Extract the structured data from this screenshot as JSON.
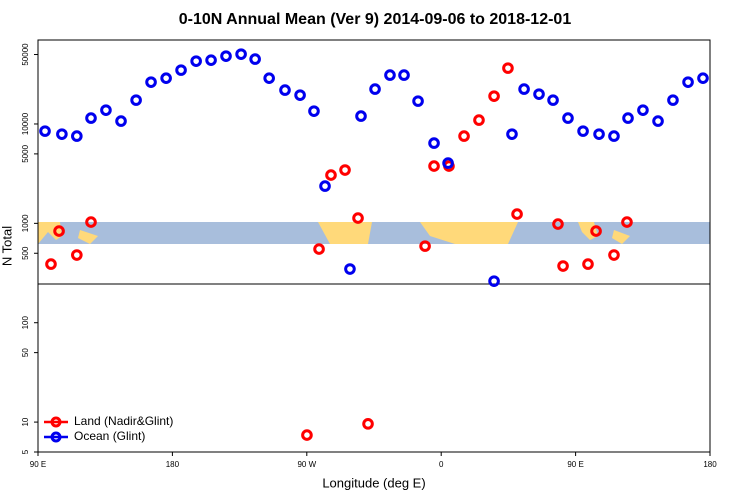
{
  "chart_data": {
    "type": "scatter",
    "title": "0-10N Annual Mean (Ver 9)   2014-09-06 to 2018-12-01",
    "xlabel": "Longitude (deg E)",
    "ylabel": "N Total",
    "xlim": [
      90,
      540
    ],
    "ylim": [
      5,
      70000
    ],
    "log_y": true,
    "legend": "bottom left",
    "xticks": [
      {
        "value": 90,
        "label": "90 E"
      },
      {
        "value": 180,
        "label": "180"
      },
      {
        "value": 270,
        "label": "90 W"
      },
      {
        "value": 360,
        "label": "0"
      },
      {
        "value": 450,
        "label": "90 E"
      },
      {
        "value": 540,
        "label": "180"
      }
    ],
    "yticks": [
      5,
      10,
      50,
      100,
      500,
      1000,
      5000,
      10000,
      50000
    ],
    "series": [
      {
        "name": "Land (Nadir&Glint)",
        "color": "#ff0000",
        "x": [
          98.7,
          104.1,
          116,
          125.5,
          270.1,
          278.2,
          286.2,
          295.6,
          304.3,
          311,
          349.2,
          355.2,
          365.2,
          375.3,
          385.3,
          395.4,
          404.7,
          410.8,
          438.2,
          441.6,
          458.3,
          463.7,
          475.7,
          484.4
        ],
        "values": [
          389,
          836,
          480,
          1030,
          7.4,
          551,
          3060,
          3440,
          1130,
          9.6,
          590,
          3770,
          3770,
          7550,
          10940,
          19060,
          36480,
          1240,
          984,
          372,
          389,
          836,
          480,
          1030
        ]
      },
      {
        "name": "Ocean (Glint)",
        "color": "#0000ee",
        "x": [
          94.7,
          106,
          116,
          125.5,
          135.5,
          145.6,
          155.7,
          165.7,
          175.8,
          185.8,
          195.9,
          205.9,
          215.9,
          226,
          235.4,
          244.8,
          255.4,
          265.5,
          274.8,
          282.2,
          298.9,
          306.3,
          315.7,
          325.7,
          335.1,
          344.5,
          355.2,
          364.6,
          395.4,
          407.4,
          415.5,
          425.5,
          434.9,
          444.9,
          455,
          465.7,
          475.7,
          485.1,
          495.1,
          505.2,
          515.2,
          525.3,
          535.3
        ],
        "values": [
          8476,
          7900,
          7550,
          11460,
          13780,
          10690,
          17380,
          26360,
          28900,
          34830,
          42870,
          43870,
          48150,
          50440,
          44970,
          28900,
          21930,
          19500,
          13460,
          2371,
          347,
          12000,
          22440,
          31040,
          31040,
          16980,
          6420,
          4040,
          262,
          7900,
          22440,
          19960,
          17380,
          11460,
          8476,
          7900,
          7550,
          11460,
          13780,
          10690,
          17380,
          26360,
          28900
        ]
      }
    ]
  }
}
